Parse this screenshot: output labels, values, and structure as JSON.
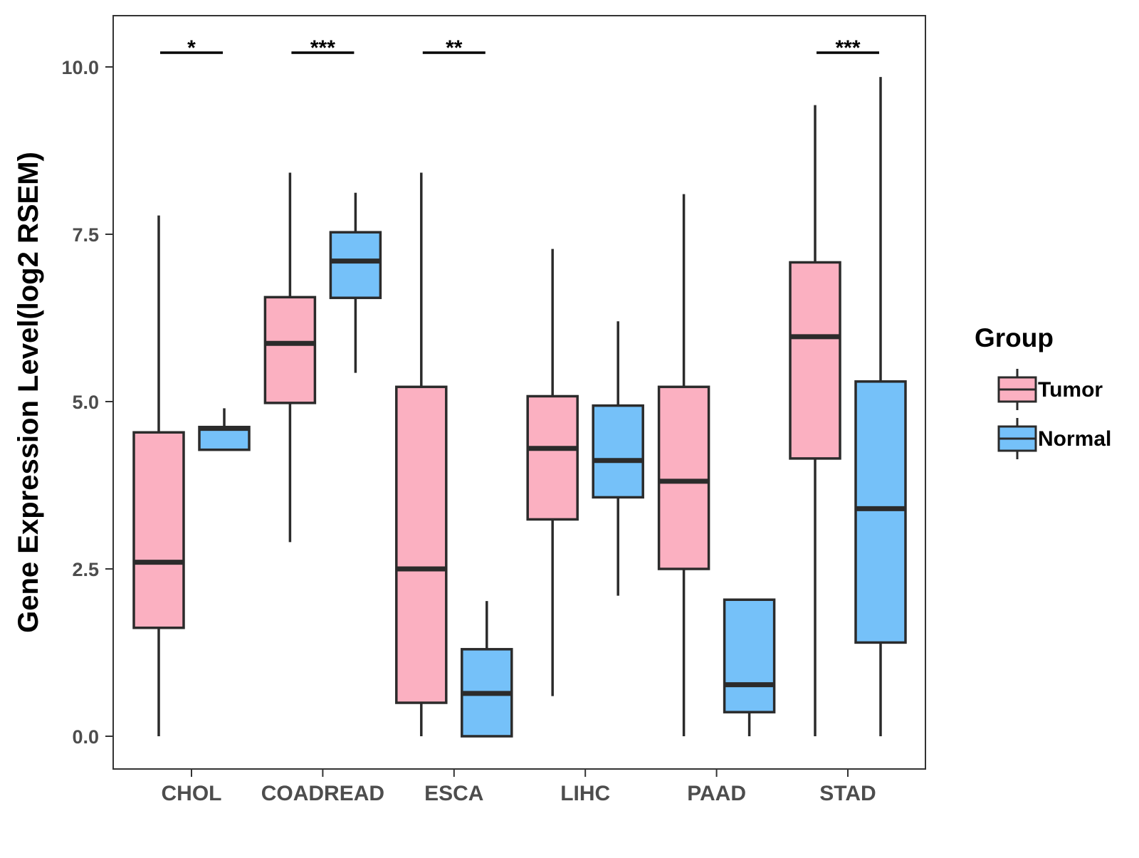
{
  "chart_data": {
    "type": "boxplot",
    "title": "",
    "xlabel": "",
    "ylabel": "Gene Expression Level(log2 RSEM)",
    "ylim": [
      -0.5,
      10.75
    ],
    "yticks": [
      "0.0",
      "2.5",
      "5.0",
      "7.5",
      "10.0"
    ],
    "ytick_values": [
      0,
      2.5,
      5,
      7.5,
      10
    ],
    "categories": [
      "CHOL",
      "COADREAD",
      "ESCA",
      "LIHC",
      "PAAD",
      "STAD"
    ],
    "legend": {
      "title": "Group",
      "position": "right",
      "entries": [
        {
          "name": "Tumor",
          "color": "#FBB0C1"
        },
        {
          "name": "Normal",
          "color": "#75C1F9"
        }
      ]
    },
    "series": [
      {
        "name": "Tumor",
        "color": "#FBB0C1",
        "boxes": [
          {
            "category": "CHOL",
            "min": 0.0,
            "q1": 1.62,
            "median": 2.6,
            "q3": 4.54,
            "max": 7.78
          },
          {
            "category": "COADREAD",
            "min": 2.9,
            "q1": 4.98,
            "median": 5.87,
            "q3": 6.56,
            "max": 8.42
          },
          {
            "category": "ESCA",
            "min": 0.0,
            "q1": 0.5,
            "median": 2.5,
            "q3": 5.22,
            "max": 8.42
          },
          {
            "category": "LIHC",
            "min": 0.6,
            "q1": 3.24,
            "median": 4.3,
            "q3": 5.08,
            "max": 7.28
          },
          {
            "category": "PAAD",
            "min": 0.0,
            "q1": 2.5,
            "median": 3.81,
            "q3": 5.22,
            "max": 8.1
          },
          {
            "category": "STAD",
            "min": 0.0,
            "q1": 4.15,
            "median": 5.97,
            "q3": 7.08,
            "max": 9.43
          }
        ]
      },
      {
        "name": "Normal",
        "color": "#75C1F9",
        "boxes": [
          {
            "category": "CHOL",
            "min": 4.28,
            "q1": 4.28,
            "median": 4.6,
            "q3": 4.62,
            "max": 4.9
          },
          {
            "category": "COADREAD",
            "min": 5.43,
            "q1": 6.55,
            "median": 7.1,
            "q3": 7.53,
            "max": 8.12
          },
          {
            "category": "ESCA",
            "min": 0.0,
            "q1": 0.0,
            "median": 0.64,
            "q3": 1.3,
            "max": 2.02
          },
          {
            "category": "LIHC",
            "min": 2.1,
            "q1": 3.57,
            "median": 4.12,
            "q3": 4.94,
            "max": 6.2
          },
          {
            "category": "PAAD",
            "min": 0.0,
            "q1": 0.36,
            "median": 0.77,
            "q3": 2.04,
            "max": 2.04
          },
          {
            "category": "STAD",
            "min": 0.0,
            "q1": 1.4,
            "median": 3.4,
            "q3": 5.3,
            "max": 9.85
          }
        ]
      }
    ],
    "significance": [
      {
        "category": "CHOL",
        "label": "*"
      },
      {
        "category": "COADREAD",
        "label": "***"
      },
      {
        "category": "ESCA",
        "label": "**"
      },
      {
        "category": "STAD",
        "label": "***"
      }
    ],
    "grid": false
  }
}
